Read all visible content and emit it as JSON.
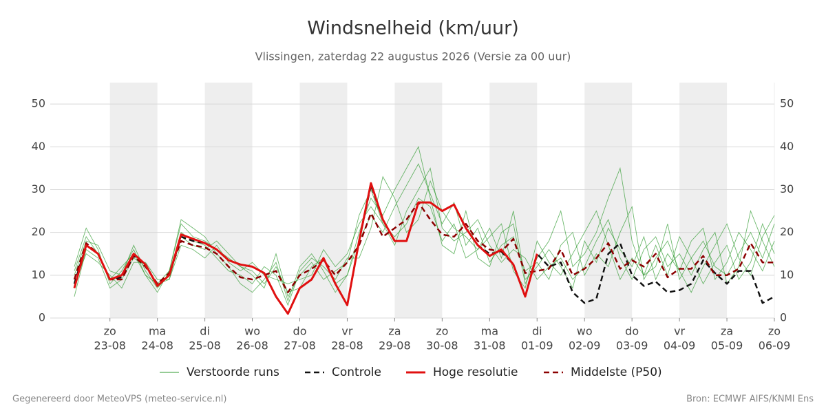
{
  "chart_data": {
    "type": "line",
    "title": "Windsnelheid (km/uur)",
    "subtitle": "Vlissingen, zaterdag 22 augustus 2026 (Versie za 00 uur)",
    "footer_left": "Gegenereerd door MeteoVPS (meteo-service.nl)",
    "footer_right": "Bron: ECMWF AIFS/KNMI Ens",
    "categories": [
      null,
      null,
      null,
      [
        "zo",
        "23-08"
      ],
      null,
      null,
      null,
      [
        "ma",
        "24-08"
      ],
      null,
      null,
      null,
      [
        "di",
        "25-08"
      ],
      null,
      null,
      null,
      [
        "wo",
        "26-08"
      ],
      null,
      null,
      null,
      [
        "do",
        "27-08"
      ],
      null,
      null,
      null,
      [
        "vr",
        "28-08"
      ],
      null,
      null,
      null,
      [
        "za",
        "29-08"
      ],
      null,
      null,
      null,
      [
        "zo",
        "30-08"
      ],
      null,
      null,
      null,
      [
        "ma",
        "31-08"
      ],
      null,
      null,
      null,
      [
        "di",
        "01-09"
      ],
      null,
      null,
      null,
      [
        "wo",
        "02-09"
      ],
      null,
      null,
      null,
      [
        "do",
        "03-09"
      ],
      null,
      null,
      null,
      [
        "vr",
        "04-09"
      ],
      null,
      null,
      null,
      [
        "za",
        "05-09"
      ],
      null,
      null,
      null,
      [
        "zo",
        "06-09"
      ]
    ],
    "ylim": [
      0,
      55
    ],
    "yticks": [
      0,
      10,
      20,
      30,
      40,
      50
    ],
    "grid": true,
    "ensemble": {
      "name": "Verstoorde runs",
      "color": "#2e9a2e",
      "members": [
        [
          12,
          21,
          16,
          8,
          11,
          16,
          10,
          6,
          11,
          23,
          21,
          19,
          15,
          12,
          8,
          6,
          9,
          13,
          4,
          12,
          15,
          11,
          6,
          10,
          20,
          28,
          24,
          30,
          35,
          40,
          28,
          17,
          15,
          25,
          14,
          12,
          20,
          22,
          8,
          14,
          18,
          25,
          12,
          15,
          20,
          28,
          35,
          18,
          10,
          12,
          22,
          9,
          14,
          18,
          12,
          10,
          15,
          20,
          14,
          22
        ],
        [
          8,
          15,
          13,
          10,
          7,
          13,
          13,
          9,
          9,
          17,
          16,
          14,
          17,
          13,
          11,
          13,
          10,
          9,
          8,
          9,
          10,
          16,
          12,
          15,
          22,
          26,
          22,
          17,
          25,
          30,
          35,
          21,
          18,
          20,
          23,
          17,
          13,
          16,
          14,
          9,
          12,
          14,
          9,
          12,
          18,
          23,
          14,
          9,
          16,
          19,
          12,
          15,
          10,
          16,
          20,
          8,
          12,
          25,
          18,
          12
        ],
        [
          10,
          18,
          17,
          11,
          10,
          17,
          11,
          7,
          10,
          20,
          18,
          17,
          14,
          11,
          10,
          8,
          12,
          10,
          3,
          11,
          14,
          12,
          9,
          14,
          14,
          21,
          33,
          28,
          20,
          23,
          32,
          25,
          21,
          19,
          16,
          19,
          22,
          11,
          7,
          18,
          13,
          10,
          15,
          20,
          25,
          17,
          9,
          14,
          10,
          17,
          10,
          19,
          14,
          8,
          13,
          17,
          9,
          13,
          22,
          15
        ],
        [
          5,
          16,
          14,
          7,
          9,
          14,
          12,
          8,
          9,
          19,
          17,
          16,
          18,
          15,
          12,
          11,
          8,
          12,
          6,
          7,
          12,
          14,
          8,
          10,
          18,
          24,
          20,
          26,
          31,
          36,
          29,
          22,
          27,
          17,
          21,
          13,
          17,
          19,
          11,
          13,
          9,
          17,
          20,
          10,
          15,
          12,
          20,
          26,
          9,
          14,
          18,
          11,
          6,
          12,
          17,
          22,
          14,
          10,
          19,
          24
        ],
        [
          11,
          19,
          15,
          9,
          12,
          15,
          10,
          8,
          11,
          22,
          19,
          18,
          16,
          14,
          12,
          10,
          7,
          15,
          5,
          10,
          13,
          9,
          11,
          13,
          24,
          30,
          22,
          19,
          22,
          28,
          26,
          18,
          22,
          14,
          16,
          21,
          14,
          25,
          9,
          12,
          16,
          12,
          7,
          18,
          13,
          21,
          16,
          12,
          19,
          9,
          15,
          11,
          18,
          21,
          9,
          13,
          20,
          16,
          11,
          18
        ]
      ]
    },
    "series": [
      {
        "name": "Controle",
        "color": "#111111",
        "dashed": true,
        "values": [
          8,
          17,
          15,
          9,
          9.5,
          14.5,
          12.5,
          7.5,
          10,
          19,
          18,
          17.5,
          16,
          13.5,
          12.5,
          12,
          10.5,
          5,
          1,
          7,
          9,
          14,
          8,
          3,
          18,
          31,
          23,
          18,
          18,
          27,
          27,
          25,
          26.5,
          21,
          17,
          15,
          15.5,
          12.5,
          5,
          15,
          12,
          13,
          6,
          3.5,
          4.5,
          15,
          17.5,
          10,
          7.5,
          8.5,
          6,
          6.5,
          8,
          13.5,
          10.5,
          8,
          11,
          11,
          3.5,
          5
        ]
      },
      {
        "name": "Hoge resolutie",
        "color": "#e01010",
        "dashed": false,
        "values": [
          7,
          17,
          15,
          9,
          10,
          15,
          12.5,
          7.5,
          10,
          19.5,
          18.5,
          17.5,
          16,
          13.5,
          12.5,
          12,
          10.5,
          5,
          1,
          7,
          9,
          14,
          8,
          3,
          18,
          31.5,
          23,
          18,
          18,
          27,
          27,
          25,
          26.5,
          21,
          17,
          14.5,
          16,
          12.5,
          5,
          15,
          null,
          null,
          null,
          null,
          null,
          null,
          null,
          null,
          null,
          null,
          null,
          null,
          null,
          null,
          null,
          null,
          null,
          null,
          null,
          null
        ]
      },
      {
        "name": "Middelste (P50)",
        "color": "#8b0000",
        "dashed": true,
        "values": [
          9,
          17.5,
          15,
          9,
          9,
          14.5,
          12,
          8,
          10.5,
          18,
          17,
          16.5,
          15,
          12,
          9.5,
          9,
          10,
          11,
          6,
          10,
          11.5,
          13.5,
          10,
          13,
          17,
          24.5,
          19,
          21,
          23,
          27,
          23,
          19.5,
          19,
          22,
          18,
          16,
          15.5,
          18.5,
          10.5,
          11,
          11.5,
          16,
          10,
          11.5,
          14,
          17.5,
          11.5,
          13.5,
          12,
          15,
          9.5,
          11.5,
          11.5,
          14.5,
          10,
          10,
          11.5,
          17.5,
          13,
          13
        ]
      }
    ]
  }
}
